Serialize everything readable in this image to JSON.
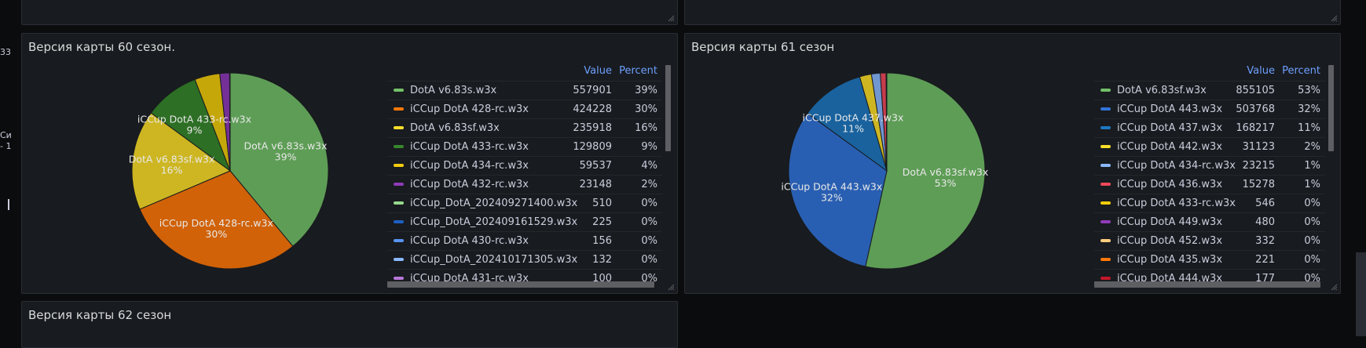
{
  "side_fragments": [
    "33",
    "Си",
    "- 1"
  ],
  "panel60": {
    "title": "Версия карты 60 сезон.",
    "legend_headers": {
      "value": "Value",
      "percent": "Percent"
    },
    "rows": [
      {
        "name": "DotA v6.83s.w3x",
        "value": "557901",
        "percent": "39%",
        "color": "#73bf69"
      },
      {
        "name": "iCCup DotA 428-rc.w3x",
        "value": "424228",
        "percent": "30%",
        "color": "#ff780a"
      },
      {
        "name": "DotA v6.83sf.w3x",
        "value": "235918",
        "percent": "16%",
        "color": "#fade2a"
      },
      {
        "name": "iCCup DotA 433-rc.w3x",
        "value": "129809",
        "percent": "9%",
        "color": "#37872d"
      },
      {
        "name": "iCCup DotA 434-rc.w3x",
        "value": "59537",
        "percent": "4%",
        "color": "#f2cc0c"
      },
      {
        "name": "iCCup DotA 432-rc.w3x",
        "value": "23148",
        "percent": "2%",
        "color": "#8f3bb8"
      },
      {
        "name": "iCCup_DotA_202409271400.w3x",
        "value": "510",
        "percent": "0%",
        "color": "#96d98d"
      },
      {
        "name": "iCCup_DotA_202409161529.w3x",
        "value": "225",
        "percent": "0%",
        "color": "#1f60c4"
      },
      {
        "name": "iCCup DotA 430-rc.w3x",
        "value": "156",
        "percent": "0%",
        "color": "#5794f2"
      },
      {
        "name": "iCCup_DotA_202410171305.w3x",
        "value": "132",
        "percent": "0%",
        "color": "#8ab8ff"
      },
      {
        "name": "iCCup DotA 431-rc.w3x",
        "value": "100",
        "percent": "0%",
        "color": "#b877d9"
      }
    ],
    "pie_labels": [
      {
        "name": "DotA v6.83s.w3x",
        "pct": "39%"
      },
      {
        "name": "iCCup DotA 428-rc.w3x",
        "pct": "30%"
      },
      {
        "name": "DotA v6.83sf.w3x",
        "pct": "16%"
      },
      {
        "name": "iCCup DotA 433-rc.w3x",
        "pct": "9%"
      }
    ]
  },
  "panel61": {
    "title": "Версия карты 61 сезон",
    "legend_headers": {
      "value": "Value",
      "percent": "Percent"
    },
    "rows": [
      {
        "name": "DotA v6.83sf.w3x",
        "value": "855105",
        "percent": "53%",
        "color": "#73bf69"
      },
      {
        "name": "iCCup DotA 443.w3x",
        "value": "503768",
        "percent": "32%",
        "color": "#3274d9"
      },
      {
        "name": "iCCup DotA 437.w3x",
        "value": "168217",
        "percent": "11%",
        "color": "#1f78c1"
      },
      {
        "name": "iCCup DotA 442.w3x",
        "value": "31123",
        "percent": "2%",
        "color": "#fade2a"
      },
      {
        "name": "iCCup DotA 434-rc.w3x",
        "value": "23215",
        "percent": "1%",
        "color": "#8ab8ff"
      },
      {
        "name": "iCCup DotA 436.w3x",
        "value": "15278",
        "percent": "1%",
        "color": "#f2495c"
      },
      {
        "name": "iCCup DotA 433-rc.w3x",
        "value": "546",
        "percent": "0%",
        "color": "#f2cc0c"
      },
      {
        "name": "iCCup DotA 449.w3x",
        "value": "480",
        "percent": "0%",
        "color": "#8f3bb8"
      },
      {
        "name": "iCCup DotA 452.w3x",
        "value": "332",
        "percent": "0%",
        "color": "#ffcb7d"
      },
      {
        "name": "iCCup DotA 435.w3x",
        "value": "221",
        "percent": "0%",
        "color": "#ff780a"
      },
      {
        "name": "iCCup DotA 444.w3x",
        "value": "177",
        "percent": "0%",
        "color": "#c4162a"
      }
    ],
    "pie_labels": [
      {
        "name": "DotA v6.83sf.w3x",
        "pct": "53%"
      },
      {
        "name": "iCCup DotA 443.w3x",
        "pct": "32%"
      },
      {
        "name": "iCCup DotA 437.w3x",
        "pct": "11%"
      }
    ]
  },
  "panel62": {
    "title": "Версия карты 62 сезон"
  }
}
